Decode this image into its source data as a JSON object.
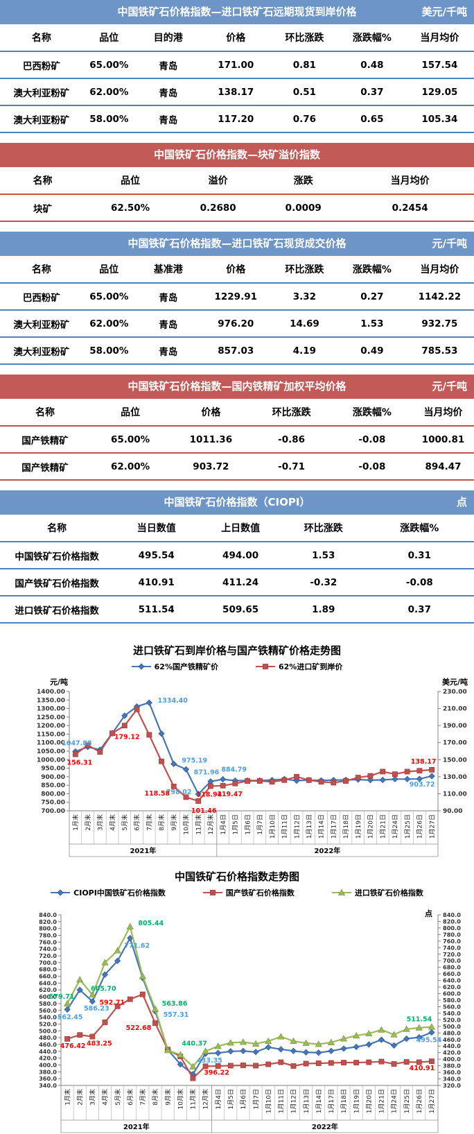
{
  "colors": {
    "blue_header": "#6e95c8",
    "red_header": "#c25b57",
    "blue_border": "#4f81bd",
    "red_border": "#c0504d",
    "line_blue": "#4576b5",
    "line_red": "#c0504d",
    "line_green": "#9bbb59",
    "label_blue": "#4f9fe0",
    "label_red": "#ff0000",
    "label_green": "#00b36b"
  },
  "tables": [
    {
      "theme": "blue",
      "title": "中国铁矿石价格指数—进口铁矿石远期现货到岸价格",
      "unit": "美元/千吨",
      "columns": [
        "名称",
        "品位",
        "目的港",
        "价格",
        "环比涨跌",
        "涨跌幅%",
        "当月均价"
      ],
      "rows": [
        [
          "巴西粉矿",
          "65.00%",
          "青岛",
          "171.00",
          "0.81",
          "0.48",
          "157.54"
        ],
        [
          "澳大利亚粉矿",
          "62.00%",
          "青岛",
          "138.17",
          "0.51",
          "0.37",
          "129.05"
        ],
        [
          "澳大利亚粉矿",
          "58.00%",
          "青岛",
          "117.20",
          "0.76",
          "0.65",
          "105.34"
        ]
      ]
    },
    {
      "theme": "red",
      "title": "中国铁矿石价格指数—块矿溢价指数",
      "unit": "",
      "columns": [
        "名称",
        "品位",
        "溢价",
        "涨跌",
        "当月均价"
      ],
      "rows": [
        [
          "块矿",
          "62.50%",
          "0.2680",
          "0.0009",
          "0.2454"
        ]
      ]
    },
    {
      "theme": "blue",
      "title": "中国铁矿石价格指数—进口铁矿石现货成交价格",
      "unit": "元/千吨",
      "columns": [
        "名称",
        "品位",
        "基准港",
        "价格",
        "环比涨跌",
        "涨跌幅%",
        "当月均价"
      ],
      "rows": [
        [
          "巴西粉矿",
          "65.00%",
          "青岛",
          "1229.91",
          "3.32",
          "0.27",
          "1142.22"
        ],
        [
          "澳大利亚粉矿",
          "62.00%",
          "青岛",
          "976.20",
          "14.69",
          "1.53",
          "932.75"
        ],
        [
          "澳大利亚粉矿",
          "58.00%",
          "青岛",
          "857.03",
          "4.19",
          "0.49",
          "785.53"
        ]
      ]
    },
    {
      "theme": "red",
      "title": "中国铁矿石价格指数—国内铁精矿加权平均价格",
      "unit": "元/千吨",
      "columns": [
        "名称",
        "品位",
        "价格",
        "环比涨跌",
        "涨跌幅%",
        "当月均价"
      ],
      "rows": [
        [
          "国产铁精矿",
          "65.00%",
          "1011.36",
          "-0.86",
          "-0.08",
          "1000.81"
        ],
        [
          "国产铁精矿",
          "62.00%",
          "903.72",
          "-0.71",
          "-0.08",
          "894.47"
        ]
      ]
    },
    {
      "theme": "blue",
      "title": "中国铁矿石价格指数（CIOPI）",
      "unit": "点",
      "columns": [
        "名称",
        "当日数值",
        "上日数值",
        "环比涨跌",
        "涨跌幅%"
      ],
      "rows": [
        [
          "中国铁矿石价格指数",
          "495.54",
          "494.00",
          "1.53",
          "0.31"
        ],
        [
          "国产铁矿石价格指数",
          "410.91",
          "411.24",
          "-0.32",
          "-0.08"
        ],
        [
          "进口铁矿石价格指数",
          "511.54",
          "509.65",
          "1.89",
          "0.37"
        ]
      ]
    }
  ],
  "chart_data": [
    {
      "type": "line",
      "title": "进口铁矿石到岸价格与国产铁精矿价格走势图",
      "y_axis": {
        "unit": "元/吨",
        "min": 700,
        "max": 1400,
        "step": 50,
        "decimals": 2
      },
      "y2_axis": {
        "unit": "美元/吨",
        "min": 90,
        "max": 230,
        "step": 20,
        "decimals": 2,
        "unit_inside": false
      },
      "categories": [
        "1月末",
        "2月末",
        "3月末",
        "4月末",
        "5月末",
        "6月末",
        "7月末",
        "8月末",
        "9月末",
        "10月末",
        "11月末",
        "12月末",
        "1月4日",
        "1月5日",
        "1月6日",
        "1月7日",
        "1月10日",
        "1月11日",
        "1月12日",
        "1月13日",
        "1月14日",
        "1月17日",
        "1月18日",
        "1月19日",
        "1月20日",
        "1月21日",
        "1月24日",
        "1月25日",
        "1月26日",
        "1月27日"
      ],
      "year_groups": [
        {
          "label": "2021年",
          "count": 12
        },
        {
          "label": "2022年",
          "count": 18
        }
      ],
      "series": [
        {
          "name": "62%国产铁精矿价",
          "marker": "diamond",
          "axis": "y",
          "color": "#4576b5",
          "label_color": "#4f9fe0",
          "values": [
            1047.88,
            1075,
            1058,
            1155,
            1258,
            1312,
            1334.4,
            1153,
            975.19,
            943,
            798.02,
            871.96,
            884.79,
            877,
            877,
            878,
            880,
            886,
            877,
            880,
            878,
            880,
            881,
            883,
            880,
            881,
            886,
            886,
            887,
            903.72
          ],
          "point_labels": [
            {
              "i": 0,
              "t": "1047.88",
              "dx": 2,
              "dy": -9
            },
            {
              "i": 6,
              "t": "1334.40",
              "dx": 34,
              "dy": 0
            },
            {
              "i": 8,
              "t": "975.19",
              "dx": 30,
              "dy": -2
            },
            {
              "i": 10,
              "t": "798.02",
              "dx": -28,
              "dy": 0
            },
            {
              "i": 11,
              "t": "871.96",
              "dx": -6,
              "dy": -10
            },
            {
              "i": 12,
              "t": "884.79",
              "dx": 16,
              "dy": -11
            },
            {
              "i": 29,
              "t": "903.72",
              "dx": -14,
              "dy": 15
            }
          ]
        },
        {
          "name": "62%进口矿到岸价",
          "marker": "square",
          "axis": "y2",
          "color": "#c0504d",
          "label_color": "#ff0000",
          "values": [
            156.31,
            167,
            159,
            181,
            190,
            209,
            179.12,
            148,
            118.58,
            106,
            101.46,
            118.94,
            119.47,
            122,
            125,
            125,
            124,
            126,
            130,
            126,
            124,
            123,
            125,
            129,
            131,
            136,
            133,
            136,
            137,
            138.17
          ],
          "point_labels": [
            {
              "i": 0,
              "t": "156.31",
              "dx": 6,
              "dy": 15
            },
            {
              "i": 6,
              "t": "179.12",
              "dx": -32,
              "dy": 6
            },
            {
              "i": 8,
              "t": "118.58",
              "dx": -24,
              "dy": 13
            },
            {
              "i": 10,
              "t": "101.46",
              "dx": 8,
              "dy": 17
            },
            {
              "i": 11,
              "t": "118.94",
              "dx": -2,
              "dy": 15
            },
            {
              "i": 12,
              "t": "119.47",
              "dx": 10,
              "dy": 15
            },
            {
              "i": 29,
              "t": "138.17",
              "dx": -12,
              "dy": -9
            }
          ]
        }
      ]
    },
    {
      "type": "line",
      "title": "中国铁矿石价格指数走势图",
      "y_axis": {
        "unit": "",
        "min": 340,
        "max": 840,
        "step": 20,
        "decimals": 1
      },
      "y2_axis": {
        "unit": "点",
        "min": 320,
        "max": 840,
        "step": 20,
        "decimals": 1,
        "unit_inside": true
      },
      "categories": [
        "1月末",
        "2月末",
        "3月末",
        "4月末",
        "5月末",
        "6月末",
        "7月末",
        "8月末",
        "9月末",
        "10月末",
        "11月末",
        "12月末",
        "1月4日",
        "1月5日",
        "1月6日",
        "1月7日",
        "1月10日",
        "1月11日",
        "1月12日",
        "1月13日",
        "1月14日",
        "1月17日",
        "1月18日",
        "1月19日",
        "1月20日",
        "1月21日",
        "1月24日",
        "1月25日",
        "1月26日",
        "1月27日"
      ],
      "year_groups": [
        {
          "label": "2021年",
          "count": 12
        },
        {
          "label": "2022年",
          "count": 18
        }
      ],
      "series": [
        {
          "name": "CIOPI中国铁矿石价格指数",
          "marker": "diamond",
          "axis": "y",
          "color": "#4576b5",
          "label_color": "#4f9fe0",
          "values": [
            562.45,
            620,
            586.23,
            665,
            705,
            771.62,
            655,
            557.31,
            445,
            402,
            373,
            433.35,
            435,
            440,
            441,
            438,
            452,
            446,
            441,
            437,
            436,
            441,
            448,
            453,
            460,
            474,
            457,
            477,
            481,
            495.54
          ],
          "point_labels": [
            {
              "i": 0,
              "t": "562.45",
              "dx": 4,
              "dy": 14
            },
            {
              "i": 2,
              "t": "586.23",
              "dx": 6,
              "dy": 13
            },
            {
              "i": 5,
              "t": "771.62",
              "dx": 10,
              "dy": 14
            },
            {
              "i": 7,
              "t": "557.31",
              "dx": 30,
              "dy": 8
            },
            {
              "i": 11,
              "t": "433.35",
              "dx": 6,
              "dy": 13
            },
            {
              "i": 29,
              "t": "495.54",
              "dx": -4,
              "dy": 14
            }
          ]
        },
        {
          "name": "国产铁矿石价格指数",
          "marker": "square",
          "axis": "y",
          "color": "#c0504d",
          "label_color": "#ff0000",
          "values": [
            476.42,
            488,
            483.25,
            525,
            572,
            592.71,
            607,
            522.68,
            445,
            425,
            361,
            396.22,
            397,
            398,
            399,
            398,
            402,
            408,
            397,
            404,
            405,
            406,
            407,
            407,
            408,
            410,
            403,
            409,
            408,
            410.91
          ],
          "point_labels": [
            {
              "i": 0,
              "t": "476.42",
              "dx": 8,
              "dy": 13
            },
            {
              "i": 2,
              "t": "483.25",
              "dx": 10,
              "dy": 13
            },
            {
              "i": 5,
              "t": "592.71",
              "dx": -26,
              "dy": 8
            },
            {
              "i": 7,
              "t": "522.68",
              "dx": -24,
              "dy": 10
            },
            {
              "i": 11,
              "t": "396.22",
              "dx": 16,
              "dy": 12
            },
            {
              "i": 29,
              "t": "410.91",
              "dx": -14,
              "dy": 13
            }
          ]
        },
        {
          "name": "进口铁矿石价格指数",
          "marker": "triangle",
          "axis": "y",
          "color": "#9bbb59",
          "label_color": "#00b36b",
          "values": [
            579.71,
            650,
            605.7,
            700,
            735,
            805.44,
            660,
            563.86,
            443,
            430,
            395,
            440.37,
            455,
            465,
            467,
            462,
            470,
            483,
            470,
            464,
            461,
            466,
            477,
            486,
            492,
            503,
            489,
            505,
            509,
            511.54
          ],
          "point_labels": [
            {
              "i": 0,
              "t": "579.71",
              "dx": -8,
              "dy": -7
            },
            {
              "i": 2,
              "t": "605.70",
              "dx": 16,
              "dy": -6
            },
            {
              "i": 5,
              "t": "805.44",
              "dx": 30,
              "dy": -2
            },
            {
              "i": 7,
              "t": "563.86",
              "dx": 28,
              "dy": -5
            },
            {
              "i": 11,
              "t": "440.37",
              "dx": -16,
              "dy": -8
            },
            {
              "i": 29,
              "t": "511.54",
              "dx": -18,
              "dy": -8
            }
          ]
        }
      ]
    }
  ]
}
